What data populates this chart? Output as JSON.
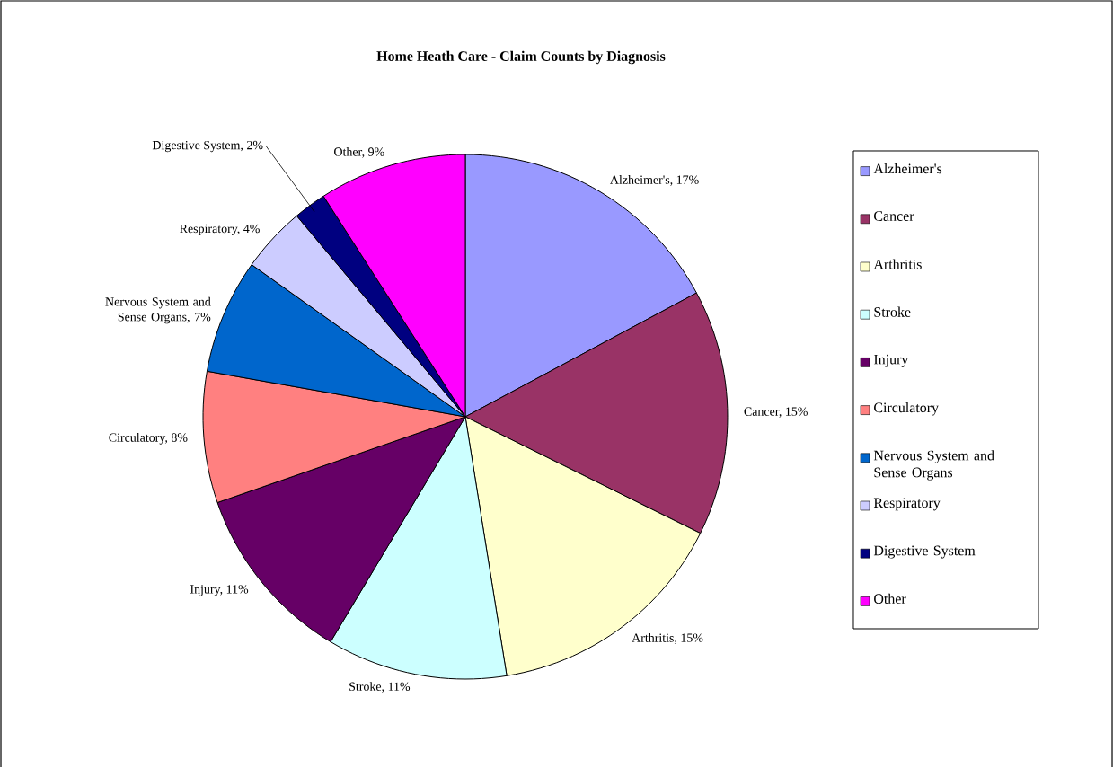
{
  "chart_data": {
    "type": "pie",
    "title": "Home Heath Care - Claim Counts by Diagnosis",
    "categories": [
      "Alzheimer's",
      "Cancer",
      "Arthritis",
      "Stroke",
      "Injury",
      "Circulatory",
      "Nervous System and Sense Organs",
      "Respiratory",
      "Digestive System",
      "Other"
    ],
    "values": [
      17,
      15,
      15,
      11,
      11,
      8,
      7,
      4,
      2,
      9
    ],
    "colors": [
      "#9999ff",
      "#993366",
      "#ffffcc",
      "#ccffff",
      "#660066",
      "#ff8080",
      "#0066cc",
      "#ccccff",
      "#000080",
      "#ff00ff"
    ],
    "value_labels": [
      "Alzheimer's, 17%",
      "Cancer, 15%",
      "Arthritis, 15%",
      "Stroke, 11%",
      "Injury, 11%",
      "Circulatory, 8%",
      "Nervous System and Sense Organs, 7%",
      "Respiratory, 4%",
      "Digestive System, 2%",
      "Other, 9%"
    ],
    "legend": "right"
  }
}
